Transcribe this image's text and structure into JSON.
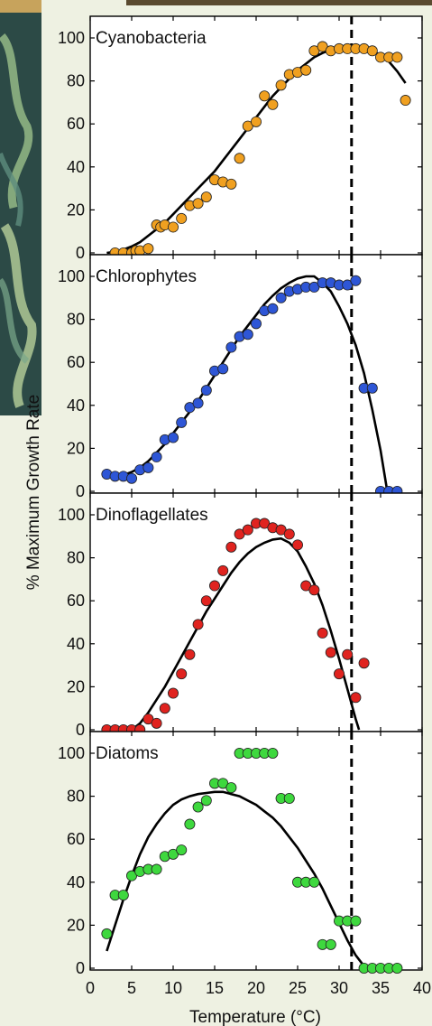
{
  "chart_data": {
    "type": "scatter",
    "ylabel": "% Maximum Growth Rate",
    "xlabel": "Temperature (°C)",
    "xlim": [
      0,
      40
    ],
    "xticks": [
      0,
      5,
      10,
      15,
      20,
      25,
      30,
      35,
      40
    ],
    "ylim": [
      0,
      100
    ],
    "yticks": [
      0,
      20,
      40,
      60,
      80,
      100
    ],
    "dashed_vline_x": 31.5,
    "panels": [
      {
        "name": "Cyanobacteria",
        "color": "#f0a020",
        "points": [
          [
            3,
            0
          ],
          [
            4,
            0
          ],
          [
            5,
            0
          ],
          [
            5.5,
            1
          ],
          [
            6,
            1
          ],
          [
            7,
            2
          ],
          [
            8,
            13
          ],
          [
            8.5,
            12
          ],
          [
            9,
            13
          ],
          [
            10,
            12
          ],
          [
            11,
            16
          ],
          [
            12,
            22
          ],
          [
            13,
            23
          ],
          [
            14,
            26
          ],
          [
            15,
            34
          ],
          [
            16,
            33
          ],
          [
            17,
            32
          ],
          [
            18,
            44
          ],
          [
            19,
            59
          ],
          [
            20,
            61
          ],
          [
            21,
            73
          ],
          [
            22,
            69
          ],
          [
            23,
            78
          ],
          [
            24,
            83
          ],
          [
            25,
            84
          ],
          [
            26,
            85
          ],
          [
            27,
            94
          ],
          [
            28,
            96
          ],
          [
            29,
            94
          ],
          [
            30,
            95
          ],
          [
            31,
            95
          ],
          [
            32,
            95
          ],
          [
            33,
            95
          ],
          [
            34,
            94
          ],
          [
            35,
            91
          ],
          [
            36,
            91
          ],
          [
            37,
            91
          ],
          [
            38,
            71
          ]
        ],
        "curve": [
          [
            2,
            0
          ],
          [
            3,
            0.5
          ],
          [
            4,
            1.5
          ],
          [
            5,
            3
          ],
          [
            6,
            5
          ],
          [
            7,
            8
          ],
          [
            8,
            11
          ],
          [
            9,
            14
          ],
          [
            10,
            18
          ],
          [
            11,
            22
          ],
          [
            12,
            26
          ],
          [
            13,
            30
          ],
          [
            14,
            34
          ],
          [
            15,
            38
          ],
          [
            16,
            43
          ],
          [
            17,
            48
          ],
          [
            18,
            53
          ],
          [
            19,
            58
          ],
          [
            20,
            63
          ],
          [
            21,
            68
          ],
          [
            22,
            73
          ],
          [
            23,
            77
          ],
          [
            24,
            81
          ],
          [
            25,
            85
          ],
          [
            26,
            88
          ],
          [
            27,
            91
          ],
          [
            28,
            93
          ],
          [
            29,
            94.5
          ],
          [
            30,
            95
          ],
          [
            31,
            95.5
          ],
          [
            32,
            95.5
          ],
          [
            33,
            95
          ],
          [
            34,
            94
          ],
          [
            35,
            92
          ],
          [
            36,
            89
          ],
          [
            37,
            84.5
          ],
          [
            38,
            79
          ]
        ]
      },
      {
        "name": "Chlorophytes",
        "color": "#2e56d6",
        "points": [
          [
            2,
            8
          ],
          [
            3,
            7
          ],
          [
            4,
            7
          ],
          [
            5,
            6
          ],
          [
            6,
            10
          ],
          [
            7,
            11
          ],
          [
            8,
            16
          ],
          [
            9,
            24
          ],
          [
            10,
            25
          ],
          [
            11,
            32
          ],
          [
            12,
            39
          ],
          [
            13,
            41
          ],
          [
            14,
            47
          ],
          [
            15,
            56
          ],
          [
            16,
            57
          ],
          [
            17,
            67
          ],
          [
            18,
            72
          ],
          [
            19,
            73
          ],
          [
            20,
            78
          ],
          [
            21,
            84
          ],
          [
            22,
            85
          ],
          [
            23,
            90
          ],
          [
            24,
            93
          ],
          [
            25,
            94
          ],
          [
            26,
            95
          ],
          [
            27,
            95
          ],
          [
            28,
            97
          ],
          [
            29,
            97
          ],
          [
            30,
            96
          ],
          [
            31,
            96
          ],
          [
            32,
            98
          ],
          [
            33,
            48
          ],
          [
            34,
            48
          ],
          [
            35,
            0
          ],
          [
            36,
            0
          ],
          [
            37,
            0
          ]
        ],
        "curve": [
          [
            2,
            7
          ],
          [
            3,
            7
          ],
          [
            4,
            7.5
          ],
          [
            5,
            9
          ],
          [
            6,
            11
          ],
          [
            7,
            14
          ],
          [
            8,
            18
          ],
          [
            9,
            22
          ],
          [
            10,
            27
          ],
          [
            11,
            32
          ],
          [
            12,
            37
          ],
          [
            13,
            42
          ],
          [
            14,
            48
          ],
          [
            15,
            54
          ],
          [
            16,
            60
          ],
          [
            17,
            66
          ],
          [
            18,
            72
          ],
          [
            19,
            77
          ],
          [
            20,
            82
          ],
          [
            21,
            87
          ],
          [
            22,
            91
          ],
          [
            23,
            94.5
          ],
          [
            24,
            97
          ],
          [
            25,
            99
          ],
          [
            26,
            100
          ],
          [
            27,
            100
          ],
          [
            28,
            97
          ],
          [
            29,
            93
          ],
          [
            30,
            86
          ],
          [
            31,
            78
          ],
          [
            32,
            68
          ],
          [
            33,
            55
          ],
          [
            34,
            38
          ],
          [
            35,
            19
          ],
          [
            35.8,
            0
          ]
        ]
      },
      {
        "name": "Dinoflagellates",
        "color": "#e0231f",
        "points": [
          [
            2,
            0
          ],
          [
            3,
            0
          ],
          [
            4,
            0
          ],
          [
            5,
            0
          ],
          [
            6,
            0
          ],
          [
            7,
            5
          ],
          [
            8,
            3
          ],
          [
            9,
            10
          ],
          [
            10,
            17
          ],
          [
            11,
            26
          ],
          [
            12,
            35
          ],
          [
            13,
            49
          ],
          [
            14,
            60
          ],
          [
            15,
            67
          ],
          [
            16,
            74
          ],
          [
            17,
            85
          ],
          [
            18,
            91
          ],
          [
            19,
            93
          ],
          [
            20,
            96
          ],
          [
            21,
            96
          ],
          [
            22,
            94
          ],
          [
            23,
            93
          ],
          [
            24,
            91
          ],
          [
            25,
            86
          ],
          [
            26,
            67
          ],
          [
            27,
            65
          ],
          [
            28,
            45
          ],
          [
            29,
            36
          ],
          [
            30,
            26
          ],
          [
            31,
            35
          ],
          [
            32,
            15
          ],
          [
            33,
            31
          ]
        ],
        "curve": [
          [
            5,
            0
          ],
          [
            6,
            3
          ],
          [
            7,
            8
          ],
          [
            8,
            14
          ],
          [
            9,
            20
          ],
          [
            10,
            27
          ],
          [
            11,
            34
          ],
          [
            12,
            41
          ],
          [
            13,
            48
          ],
          [
            14,
            55
          ],
          [
            15,
            61
          ],
          [
            16,
            67
          ],
          [
            17,
            73
          ],
          [
            18,
            78
          ],
          [
            19,
            82
          ],
          [
            20,
            85
          ],
          [
            21,
            87
          ],
          [
            22,
            88.5
          ],
          [
            23,
            89
          ],
          [
            24,
            87
          ],
          [
            25,
            83
          ],
          [
            26,
            76
          ],
          [
            27,
            68
          ],
          [
            28,
            58
          ],
          [
            29,
            46
          ],
          [
            30,
            33
          ],
          [
            31,
            19
          ],
          [
            32,
            5
          ],
          [
            32.4,
            0
          ]
        ]
      },
      {
        "name": "Diatoms",
        "color": "#3ed83e",
        "points": [
          [
            2,
            16
          ],
          [
            3,
            34
          ],
          [
            4,
            34
          ],
          [
            5,
            43
          ],
          [
            6,
            45
          ],
          [
            7,
            46
          ],
          [
            8,
            46
          ],
          [
            9,
            52
          ],
          [
            10,
            53
          ],
          [
            11,
            55
          ],
          [
            12,
            67
          ],
          [
            13,
            75
          ],
          [
            14,
            78
          ],
          [
            15,
            86
          ],
          [
            16,
            86
          ],
          [
            17,
            84
          ],
          [
            18,
            100
          ],
          [
            19,
            100
          ],
          [
            20,
            100
          ],
          [
            21,
            100
          ],
          [
            22,
            100
          ],
          [
            23,
            79
          ],
          [
            24,
            79
          ],
          [
            25,
            40
          ],
          [
            26,
            40
          ],
          [
            27,
            40
          ],
          [
            28,
            11
          ],
          [
            29,
            11
          ],
          [
            30,
            22
          ],
          [
            31,
            22
          ],
          [
            32,
            22
          ],
          [
            33,
            0
          ],
          [
            34,
            0
          ],
          [
            35,
            0
          ],
          [
            36,
            0
          ],
          [
            37,
            0
          ]
        ],
        "curve": [
          [
            2,
            8
          ],
          [
            3,
            20
          ],
          [
            4,
            32
          ],
          [
            5,
            43
          ],
          [
            6,
            53
          ],
          [
            7,
            61
          ],
          [
            8,
            67
          ],
          [
            9,
            72
          ],
          [
            10,
            76
          ],
          [
            11,
            78.5
          ],
          [
            12,
            80
          ],
          [
            13,
            81
          ],
          [
            14,
            81.5
          ],
          [
            15,
            82
          ],
          [
            16,
            82
          ],
          [
            17,
            81
          ],
          [
            18,
            80
          ],
          [
            19,
            78
          ],
          [
            20,
            76
          ],
          [
            21,
            73
          ],
          [
            22,
            70
          ],
          [
            23,
            66
          ],
          [
            24,
            61
          ],
          [
            25,
            56
          ],
          [
            26,
            50
          ],
          [
            27,
            44
          ],
          [
            28,
            37
          ],
          [
            29,
            29
          ],
          [
            30,
            21
          ],
          [
            31,
            13
          ],
          [
            32,
            6
          ],
          [
            33,
            1
          ],
          [
            33.7,
            0
          ]
        ]
      }
    ]
  }
}
